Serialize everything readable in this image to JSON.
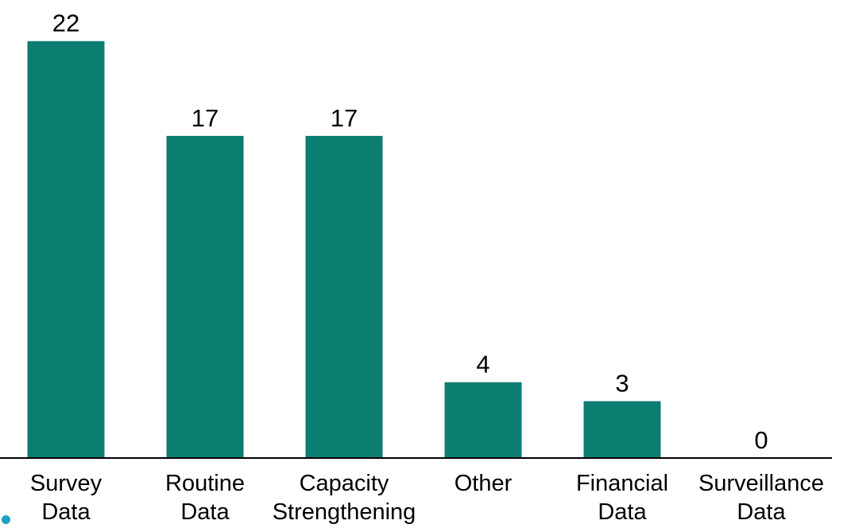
{
  "chart_data": {
    "type": "bar",
    "title": "",
    "xlabel": "",
    "ylabel": "",
    "ylim": [
      0,
      23.5
    ],
    "grid": false,
    "legend": "none",
    "bar_color": "#0b7d71",
    "axis_color": "#000000",
    "categories": [
      [
        "Survey",
        "Data"
      ],
      [
        "Routine",
        "Data"
      ],
      [
        "Capacity",
        "Strengthening"
      ],
      [
        "Other"
      ],
      [
        "Financial",
        "Data"
      ],
      [
        "Surveillance",
        "Data"
      ]
    ],
    "values": [
      22,
      17,
      17,
      4,
      3,
      0
    ],
    "data_labels": [
      "22",
      "17",
      "17",
      "4",
      "3",
      "0"
    ]
  },
  "decoration": {
    "bullet_color": "#1ba1c2"
  }
}
